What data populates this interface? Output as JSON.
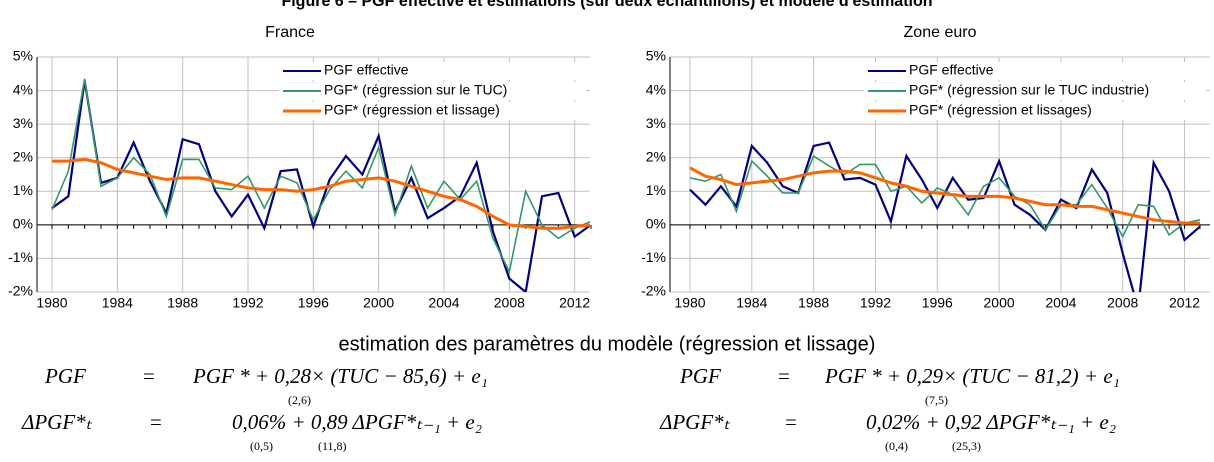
{
  "header": {
    "title": "Figure 6 – PGF effective et estimations (sur deux échantillons) et modèle d'estimation"
  },
  "chart_data": [
    {
      "type": "line",
      "title": "France",
      "x": [
        1980,
        1981,
        1982,
        1983,
        1984,
        1985,
        1986,
        1987,
        1988,
        1989,
        1990,
        1991,
        1992,
        1993,
        1994,
        1995,
        1996,
        1997,
        1998,
        1999,
        2000,
        2001,
        2002,
        2003,
        2004,
        2005,
        2006,
        2007,
        2008,
        2009,
        2010,
        2011,
        2012,
        2013
      ],
      "xlim": [
        1980,
        2013
      ],
      "xticks": [
        1980,
        1984,
        1988,
        1992,
        1996,
        2000,
        2004,
        2008,
        2012
      ],
      "ylim": [
        -2,
        5
      ],
      "yticks": [
        {
          "value": -2,
          "label": "-2%"
        },
        {
          "value": -1,
          "label": "-1%"
        },
        {
          "value": 0,
          "label": "0%"
        },
        {
          "value": 1,
          "label": "1%"
        },
        {
          "value": 2,
          "label": "2%"
        },
        {
          "value": 3,
          "label": "3%"
        },
        {
          "value": 4,
          "label": "4%"
        },
        {
          "value": 5,
          "label": "5%"
        }
      ],
      "grid": true,
      "legend": "top-right",
      "series": [
        {
          "name": "PGF effective",
          "color": "#000080",
          "values": [
            0.5,
            0.85,
            4.3,
            1.25,
            1.4,
            2.45,
            1.3,
            0.35,
            2.55,
            2.4,
            1.0,
            0.25,
            0.9,
            -0.1,
            1.6,
            1.65,
            -0.05,
            1.35,
            2.05,
            1.5,
            2.65,
            0.4,
            1.4,
            0.2,
            0.5,
            0.85,
            1.85,
            -0.2,
            -1.6,
            -2.0,
            0.85,
            0.95,
            -0.35,
            0.0
          ]
        },
        {
          "name": "PGF* (régression sur le TUC)",
          "color": "#339966",
          "values": [
            0.45,
            1.6,
            4.35,
            1.15,
            1.4,
            2.0,
            1.5,
            0.25,
            1.95,
            1.95,
            1.1,
            1.05,
            1.45,
            0.5,
            1.45,
            1.25,
            0.15,
            1.05,
            1.6,
            1.1,
            2.3,
            0.3,
            1.75,
            0.5,
            1.3,
            0.75,
            1.3,
            -0.4,
            -1.4,
            1.0,
            0.0,
            -0.4,
            -0.1,
            0.1
          ]
        },
        {
          "name": "PGF* (régression et lissage)",
          "color": "#ff6600",
          "values": [
            1.9,
            1.9,
            1.95,
            1.85,
            1.65,
            1.55,
            1.45,
            1.35,
            1.4,
            1.4,
            1.3,
            1.2,
            1.1,
            1.05,
            1.05,
            1.0,
            1.05,
            1.15,
            1.3,
            1.35,
            1.4,
            1.3,
            1.15,
            1.0,
            0.85,
            0.75,
            0.55,
            0.25,
            0.0,
            -0.05,
            -0.1,
            -0.1,
            -0.05,
            0.0
          ]
        }
      ]
    },
    {
      "type": "line",
      "title": "Zone euro",
      "x": [
        1980,
        1981,
        1982,
        1983,
        1984,
        1985,
        1986,
        1987,
        1988,
        1989,
        1990,
        1991,
        1992,
        1993,
        1994,
        1995,
        1996,
        1997,
        1998,
        1999,
        2000,
        2001,
        2002,
        2003,
        2004,
        2005,
        2006,
        2007,
        2008,
        2009,
        2010,
        2011,
        2012,
        2013
      ],
      "xlim": [
        1980,
        2013
      ],
      "xticks": [
        1980,
        1984,
        1988,
        1992,
        1996,
        2000,
        2004,
        2008,
        2012
      ],
      "ylim": [
        -2,
        5
      ],
      "yticks": [
        {
          "value": -2,
          "label": "-2%"
        },
        {
          "value": -1,
          "label": "-1%"
        },
        {
          "value": 0,
          "label": "0%"
        },
        {
          "value": 1,
          "label": "1%"
        },
        {
          "value": 2,
          "label": "2%"
        },
        {
          "value": 3,
          "label": "3%"
        },
        {
          "value": 4,
          "label": "4%"
        },
        {
          "value": 5,
          "label": "5%"
        }
      ],
      "grid": true,
      "legend": "top-right",
      "series": [
        {
          "name": "PGF effective",
          "color": "#000080",
          "values": [
            1.05,
            0.6,
            1.15,
            0.55,
            2.35,
            1.85,
            1.15,
            0.95,
            2.35,
            2.45,
            1.35,
            1.4,
            1.2,
            0.1,
            2.05,
            1.35,
            0.5,
            1.4,
            0.75,
            0.8,
            1.9,
            0.6,
            0.3,
            -0.15,
            0.75,
            0.5,
            1.65,
            0.95,
            -0.85,
            -2.5,
            1.85,
            1.0,
            -0.45,
            -0.05
          ]
        },
        {
          "name": "PGF* (régression sur le TUC industrie)",
          "color": "#339966",
          "values": [
            1.4,
            1.3,
            1.5,
            0.4,
            1.9,
            1.45,
            0.95,
            0.95,
            2.05,
            1.75,
            1.5,
            1.8,
            1.8,
            1.0,
            1.15,
            0.65,
            1.1,
            0.9,
            0.3,
            1.15,
            1.4,
            0.85,
            0.6,
            -0.15,
            0.6,
            0.6,
            1.2,
            0.5,
            -0.35,
            0.6,
            0.55,
            -0.3,
            0.05,
            0.15
          ]
        },
        {
          "name": "PGF* (régression et lissages)",
          "color": "#ff6600",
          "values": [
            1.7,
            1.45,
            1.35,
            1.2,
            1.25,
            1.3,
            1.35,
            1.45,
            1.55,
            1.6,
            1.6,
            1.55,
            1.4,
            1.25,
            1.15,
            1.0,
            0.95,
            0.9,
            0.85,
            0.85,
            0.85,
            0.8,
            0.7,
            0.6,
            0.6,
            0.55,
            0.55,
            0.45,
            0.35,
            0.25,
            0.15,
            0.1,
            0.05,
            0.05
          ]
        }
      ]
    }
  ],
  "model": {
    "title": "estimation des paramètres du modèle (régression et lissage)",
    "equations": [
      {
        "lhs": "PGF",
        "sign": "=",
        "rhs": "PGF * + 0,28× (TUC − 85,6)  + e₁",
        "se": [
          "(2,6)"
        ]
      },
      {
        "lhs": "ΔPGF*ₜ",
        "sign": "=",
        "rhs": "0,06% + 0,89  ΔPGF*ₜ₋₁ + e₂",
        "se": [
          "(0,5)",
          "(11,8)"
        ]
      },
      {
        "lhs": "PGF",
        "sign": "=",
        "rhs": "PGF * + 0,29× (TUC − 81,2)  + e₁",
        "se": [
          "(7,5)"
        ]
      },
      {
        "lhs": "ΔPGF*ₜ",
        "sign": "=",
        "rhs": "0,02% + 0,92  ΔPGF*ₜ₋₁ + e₂",
        "se": [
          "(0,4)",
          "(25,3)"
        ]
      }
    ]
  }
}
